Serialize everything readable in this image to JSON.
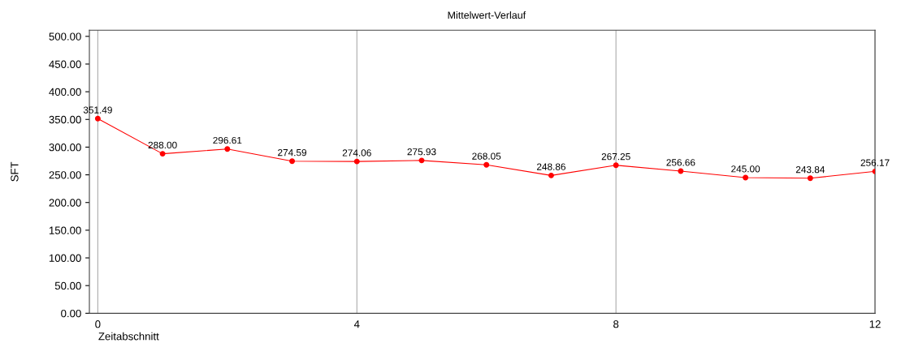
{
  "chart_data": {
    "type": "line",
    "title": "Mittelwert-Verlauf",
    "xlabel": "Zeitabschnitt",
    "ylabel": "SFT",
    "x": [
      0,
      1,
      2,
      3,
      4,
      5,
      6,
      7,
      8,
      9,
      10,
      11,
      12
    ],
    "series": [
      {
        "color": "#ff0000",
        "values": [
          351.49,
          288.0,
          296.61,
          274.59,
          274.06,
          275.93,
          268.05,
          248.86,
          267.25,
          256.66,
          245.0,
          243.84,
          256.17
        ],
        "value_labels": [
          "351.49",
          "288.00",
          "296.61",
          "274.59",
          "274.06",
          "275.93",
          "268.05",
          "248.86",
          "267.25",
          "256.66",
          "245.00",
          "243.84",
          "256.17"
        ]
      }
    ],
    "marker": "circle",
    "line_style": "solid",
    "grid": "x",
    "xlim": [
      -0.13,
      12
    ],
    "xticks": [
      0,
      4,
      8,
      12
    ],
    "ylim": [
      0,
      511
    ],
    "yticks": [
      {
        "value": 0,
        "label": "0.00"
      },
      {
        "value": 50,
        "label": "50.00"
      },
      {
        "value": 100,
        "label": "100.00"
      },
      {
        "value": 150,
        "label": "150.00"
      },
      {
        "value": 200,
        "label": "200.00"
      },
      {
        "value": 250,
        "label": "250.00"
      },
      {
        "value": 300,
        "label": "300.00"
      },
      {
        "value": 350,
        "label": "350.00"
      },
      {
        "value": 400,
        "label": "400.00"
      },
      {
        "value": 450,
        "label": "450.00"
      },
      {
        "value": 500,
        "label": "500.00"
      }
    ]
  }
}
